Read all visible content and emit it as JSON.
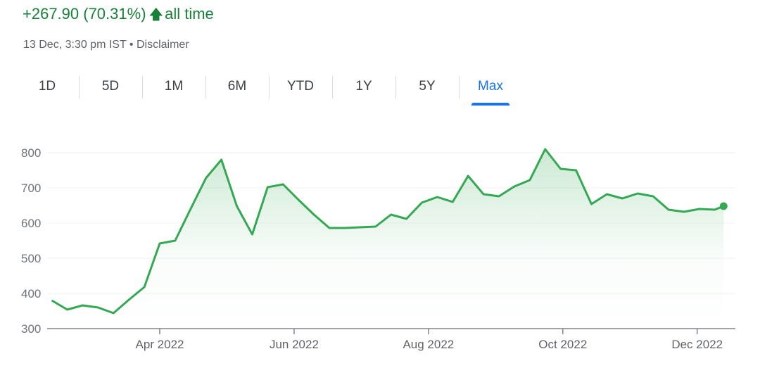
{
  "header": {
    "change_text": "+267.90 (70.31%)",
    "arrow_icon": "arrow-up-icon",
    "period_text": "all time",
    "timestamp": "13 Dec, 3:30 pm IST",
    "separator": "•",
    "disclaimer": "Disclaimer",
    "color": "#188038"
  },
  "tabs": [
    {
      "label": "1D"
    },
    {
      "label": "5D"
    },
    {
      "label": "1M"
    },
    {
      "label": "6M"
    },
    {
      "label": "YTD"
    },
    {
      "label": "1Y"
    },
    {
      "label": "5Y"
    },
    {
      "label": "Max",
      "active": true
    }
  ],
  "accent_color": "#1a73e8",
  "chart_data": {
    "type": "area",
    "line_color": "#34a853",
    "grid": true,
    "ylim": [
      300,
      800
    ],
    "yticks": [
      300,
      400,
      500,
      600,
      700,
      800
    ],
    "xticks": [
      {
        "date": "2022-04-01",
        "label": "Apr 2022"
      },
      {
        "date": "2022-06-01",
        "label": "Jun 2022"
      },
      {
        "date": "2022-08-01",
        "label": "Aug 2022"
      },
      {
        "date": "2022-10-01",
        "label": "Oct 2022"
      },
      {
        "date": "2022-12-01",
        "label": "Dec 2022"
      }
    ],
    "x": [
      "2022-02-11",
      "2022-02-18",
      "2022-02-25",
      "2022-03-04",
      "2022-03-11",
      "2022-03-18",
      "2022-03-25",
      "2022-04-01",
      "2022-04-08",
      "2022-04-15",
      "2022-04-22",
      "2022-04-29",
      "2022-05-06",
      "2022-05-13",
      "2022-05-20",
      "2022-05-27",
      "2022-06-03",
      "2022-06-10",
      "2022-06-17",
      "2022-06-24",
      "2022-07-01",
      "2022-07-08",
      "2022-07-15",
      "2022-07-22",
      "2022-07-29",
      "2022-08-05",
      "2022-08-12",
      "2022-08-19",
      "2022-08-26",
      "2022-09-02",
      "2022-09-09",
      "2022-09-16",
      "2022-09-23",
      "2022-09-30",
      "2022-10-07",
      "2022-10-14",
      "2022-10-21",
      "2022-10-28",
      "2022-11-04",
      "2022-11-11",
      "2022-11-18",
      "2022-11-25",
      "2022-12-02",
      "2022-12-09",
      "2022-12-13"
    ],
    "values": [
      380,
      354,
      366,
      360,
      344,
      382,
      418,
      542,
      550,
      640,
      728,
      780,
      648,
      568,
      702,
      710,
      666,
      624,
      586,
      586,
      588,
      590,
      624,
      612,
      658,
      674,
      660,
      734,
      682,
      676,
      704,
      722,
      810,
      754,
      750,
      654,
      682,
      670,
      684,
      676,
      638,
      632,
      640,
      638,
      648
    ]
  }
}
